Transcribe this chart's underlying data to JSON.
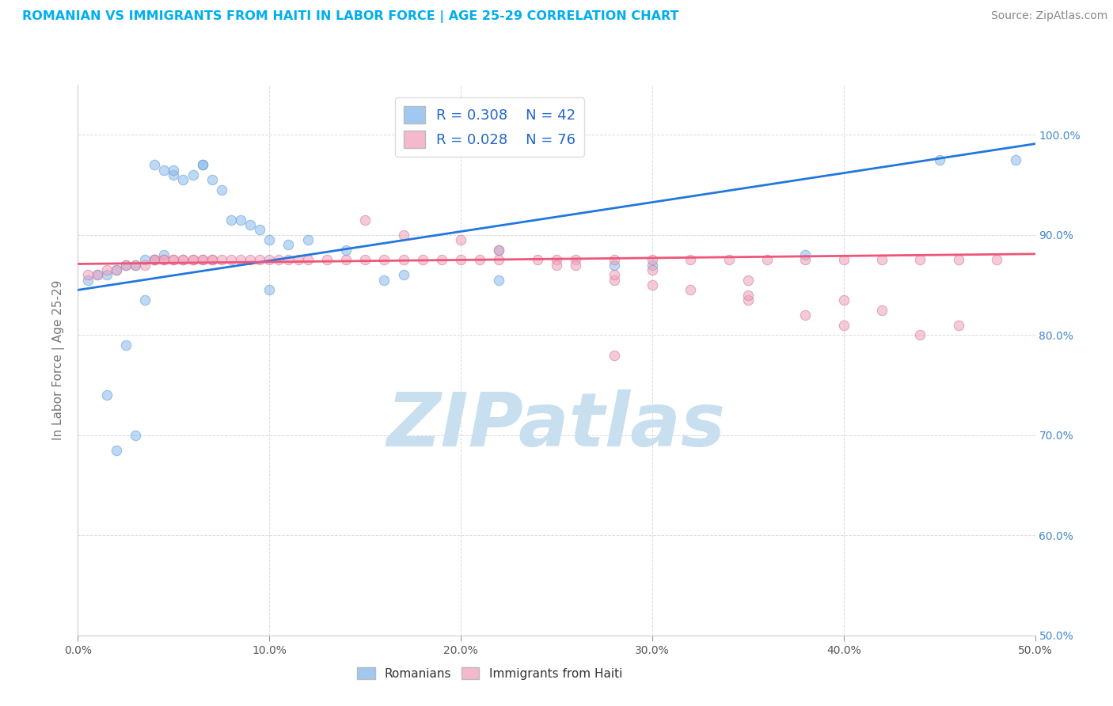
{
  "title": "ROMANIAN VS IMMIGRANTS FROM HAITI IN LABOR FORCE | AGE 25-29 CORRELATION CHART",
  "source_text": "Source: ZipAtlas.com",
  "ylabel": "In Labor Force | Age 25-29",
  "title_color": "#00AEEF",
  "source_color": "#888888",
  "axis_label_color": "#777777",
  "background_color": "#ffffff",
  "grid_color": "#cccccc",
  "watermark_text": "ZIPatlas",
  "watermark_color": "#c8dff0",
  "xlim": [
    0.0,
    0.5
  ],
  "ylim": [
    0.5,
    1.05
  ],
  "right_ytick_labels": [
    "50.0%",
    "60.0%",
    "70.0%",
    "80.0%",
    "90.0%",
    "100.0%"
  ],
  "right_ytick_values": [
    0.5,
    0.6,
    0.7,
    0.8,
    0.9,
    1.0
  ],
  "xtick_labels": [
    "0.0%",
    "10.0%",
    "20.0%",
    "30.0%",
    "40.0%",
    "50.0%"
  ],
  "xtick_values": [
    0.0,
    0.1,
    0.2,
    0.3,
    0.4,
    0.5
  ],
  "legend_r1": "R = 0.308",
  "legend_n1": "N = 42",
  "legend_r2": "R = 0.028",
  "legend_n2": "N = 76",
  "legend_color1": "#a0c8f0",
  "legend_color2": "#f5b8cc",
  "scatter_color1": "#88bbee",
  "scatter_color2": "#f0a0bb",
  "scatter_edge1": "#6699cc",
  "scatter_edge2": "#cc7799",
  "line_color1": "#2277dd",
  "line_color2": "#ee5577",
  "marker_size": 80,
  "marker_alpha": 0.55,
  "line_width": 2.0,
  "scatter1_x": [
    0.005,
    0.01,
    0.015,
    0.02,
    0.025,
    0.03,
    0.035,
    0.04,
    0.04,
    0.045,
    0.05,
    0.05,
    0.055,
    0.06,
    0.065,
    0.065,
    0.07,
    0.075,
    0.08,
    0.085,
    0.09,
    0.095,
    0.1,
    0.11,
    0.12,
    0.14,
    0.16,
    0.045,
    0.035,
    0.025,
    0.015,
    0.02,
    0.03,
    0.17,
    0.22,
    0.28,
    0.3,
    0.38,
    0.45,
    0.49,
    0.1,
    0.22
  ],
  "scatter1_y": [
    0.855,
    0.86,
    0.86,
    0.865,
    0.87,
    0.87,
    0.875,
    0.875,
    0.97,
    0.965,
    0.96,
    0.965,
    0.955,
    0.96,
    0.97,
    0.97,
    0.955,
    0.945,
    0.915,
    0.915,
    0.91,
    0.905,
    0.895,
    0.89,
    0.895,
    0.885,
    0.855,
    0.88,
    0.835,
    0.79,
    0.74,
    0.685,
    0.7,
    0.86,
    0.885,
    0.87,
    0.87,
    0.88,
    0.975,
    0.975,
    0.845,
    0.855
  ],
  "scatter2_x": [
    0.005,
    0.01,
    0.015,
    0.02,
    0.025,
    0.03,
    0.035,
    0.04,
    0.04,
    0.045,
    0.045,
    0.05,
    0.05,
    0.055,
    0.055,
    0.06,
    0.06,
    0.065,
    0.065,
    0.07,
    0.07,
    0.075,
    0.08,
    0.085,
    0.09,
    0.095,
    0.1,
    0.105,
    0.11,
    0.115,
    0.12,
    0.13,
    0.14,
    0.15,
    0.16,
    0.17,
    0.18,
    0.19,
    0.2,
    0.21,
    0.22,
    0.24,
    0.25,
    0.26,
    0.28,
    0.3,
    0.32,
    0.34,
    0.36,
    0.38,
    0.4,
    0.42,
    0.44,
    0.46,
    0.48,
    0.15,
    0.17,
    0.2,
    0.22,
    0.25,
    0.28,
    0.32,
    0.35,
    0.38,
    0.4,
    0.44,
    0.3,
    0.35,
    0.26,
    0.28,
    0.3,
    0.35,
    0.4,
    0.42,
    0.46,
    0.28
  ],
  "scatter2_y": [
    0.86,
    0.86,
    0.865,
    0.865,
    0.87,
    0.87,
    0.87,
    0.875,
    0.875,
    0.875,
    0.875,
    0.875,
    0.875,
    0.875,
    0.875,
    0.875,
    0.875,
    0.875,
    0.875,
    0.875,
    0.875,
    0.875,
    0.875,
    0.875,
    0.875,
    0.875,
    0.875,
    0.875,
    0.875,
    0.875,
    0.875,
    0.875,
    0.875,
    0.875,
    0.875,
    0.875,
    0.875,
    0.875,
    0.875,
    0.875,
    0.875,
    0.875,
    0.875,
    0.875,
    0.875,
    0.875,
    0.875,
    0.875,
    0.875,
    0.875,
    0.875,
    0.875,
    0.875,
    0.875,
    0.875,
    0.915,
    0.9,
    0.895,
    0.885,
    0.87,
    0.855,
    0.845,
    0.835,
    0.82,
    0.81,
    0.8,
    0.865,
    0.855,
    0.87,
    0.86,
    0.85,
    0.84,
    0.835,
    0.825,
    0.81,
    0.78
  ],
  "line1_x": [
    0.0,
    0.5
  ],
  "line1_y": [
    0.845,
    0.991
  ],
  "line2_x": [
    0.0,
    0.5
  ],
  "line2_y": [
    0.871,
    0.881
  ]
}
